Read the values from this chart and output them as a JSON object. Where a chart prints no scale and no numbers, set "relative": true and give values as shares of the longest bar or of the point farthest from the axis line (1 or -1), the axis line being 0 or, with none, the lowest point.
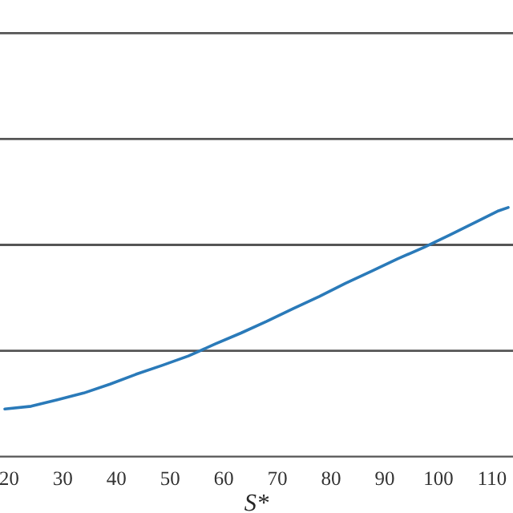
{
  "chart_data": {
    "type": "line",
    "xlabel": "S*",
    "relative": true,
    "ref_lines": [
      {
        "axis": "y",
        "value": 0.425,
        "color": "#555555"
      },
      {
        "axis": "y",
        "value": 0.85,
        "color": "#555555"
      },
      {
        "axis": "y",
        "value": 1.275,
        "color": "#555555"
      },
      {
        "axis": "y",
        "value": 1.7,
        "color": "#555555"
      }
    ],
    "xlim": [
      18.3,
      113.9
    ],
    "xticks": [
      20,
      30,
      40,
      50,
      60,
      70,
      80,
      90,
      100,
      110
    ],
    "series": [
      {
        "color": "#2a7ab9",
        "x": [
          19.2,
          24.1,
          29,
          33.9,
          38.8,
          43.6,
          48.5,
          53.4,
          58.3,
          63.2,
          68,
          72.9,
          77.8,
          82.7,
          87.6,
          92.4,
          97.3,
          102.2,
          107.1,
          111,
          113
        ],
        "values": [
          0.191,
          0.202,
          0.228,
          0.255,
          0.291,
          0.33,
          0.366,
          0.404,
          0.451,
          0.496,
          0.543,
          0.594,
          0.643,
          0.696,
          0.745,
          0.794,
          0.84,
          0.891,
          0.943,
          0.985,
          1.0
        ]
      }
    ]
  }
}
